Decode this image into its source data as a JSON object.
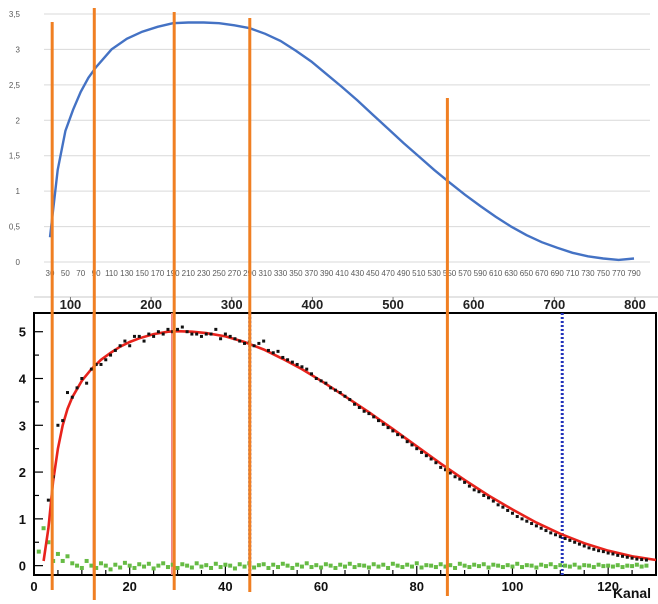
{
  "colors": {
    "top_curve": "#4472c4",
    "fit_curve": "#e8231c",
    "data_points": "#111111",
    "background_points": "#66bb44",
    "marker_orange": "#f07f22",
    "marker_pink": "#f08080",
    "marker_blue": "#2233bb",
    "grid": "#d9d9d9",
    "axis": "#000000"
  },
  "chart_data": [
    {
      "type": "line",
      "title": "",
      "xlabel": "",
      "ylabel": "",
      "xlim": [
        30,
        790
      ],
      "ylim": [
        0,
        3.5
      ],
      "grid": "horizontal",
      "y_ticks": [
        "0",
        "0,5",
        "1",
        "1,5",
        "2",
        "2,5",
        "3",
        "3,5"
      ],
      "y_tick_values": [
        0,
        0.5,
        1,
        1.5,
        2,
        2.5,
        3,
        3.5
      ],
      "x_ticks": [
        30,
        50,
        70,
        90,
        110,
        130,
        150,
        170,
        190,
        210,
        230,
        250,
        270,
        290,
        310,
        330,
        350,
        370,
        390,
        410,
        430,
        450,
        470,
        490,
        510,
        530,
        550,
        570,
        590,
        610,
        630,
        650,
        670,
        690,
        710,
        730,
        750,
        770,
        790
      ],
      "series": [
        {
          "x": [
            30,
            40,
            50,
            60,
            70,
            80,
            90,
            110,
            130,
            150,
            170,
            190,
            210,
            230,
            250,
            270,
            290,
            310,
            330,
            350,
            370,
            390,
            410,
            430,
            450,
            470,
            490,
            510,
            530,
            550,
            570,
            590,
            610,
            630,
            650,
            670,
            690,
            710,
            730,
            750,
            770,
            790
          ],
          "y": [
            0.35,
            1.3,
            1.85,
            2.15,
            2.4,
            2.6,
            2.75,
            3.0,
            3.15,
            3.25,
            3.32,
            3.37,
            3.38,
            3.38,
            3.37,
            3.34,
            3.3,
            3.22,
            3.12,
            2.98,
            2.83,
            2.65,
            2.47,
            2.28,
            2.08,
            1.88,
            1.68,
            1.49,
            1.3,
            1.12,
            0.95,
            0.79,
            0.64,
            0.5,
            0.38,
            0.28,
            0.2,
            0.13,
            0.08,
            0.05,
            0.03,
            0.05
          ]
        }
      ]
    },
    {
      "type": "axis",
      "ticks": [
        "100",
        "200",
        "300",
        "400",
        "500",
        "600",
        "700",
        "800"
      ],
      "tick_values": [
        100,
        200,
        300,
        400,
        500,
        600,
        700,
        800
      ],
      "range": [
        30,
        800
      ]
    },
    {
      "type": "scatter",
      "title": "",
      "xlabel": "Kanal",
      "ylabel": "",
      "xlim": [
        0,
        130
      ],
      "ylim": [
        -0.2,
        5.4
      ],
      "x_ticks": [
        "0",
        "20",
        "40",
        "60",
        "80",
        "100",
        "120"
      ],
      "x_tick_values": [
        0,
        20,
        40,
        60,
        80,
        100,
        120
      ],
      "y_ticks": [
        "0",
        "1",
        "2",
        "3",
        "4",
        "5"
      ],
      "y_tick_values": [
        0,
        1,
        2,
        3,
        4,
        5
      ],
      "series": [
        {
          "role": "fit",
          "x": [
            2,
            3,
            4,
            5,
            6,
            7,
            8,
            10,
            12,
            14,
            16,
            18,
            20,
            22,
            25,
            28,
            30,
            33,
            36,
            40,
            44,
            48,
            52,
            56,
            60,
            65,
            70,
            75,
            80,
            85,
            90,
            95,
            100,
            105,
            110,
            115,
            120,
            125,
            130
          ],
          "y": [
            0.1,
            0.8,
            1.8,
            2.5,
            3.0,
            3.35,
            3.6,
            3.95,
            4.2,
            4.4,
            4.55,
            4.68,
            4.78,
            4.86,
            4.95,
            5.0,
            5.01,
            5.0,
            4.97,
            4.9,
            4.78,
            4.62,
            4.42,
            4.2,
            3.95,
            3.62,
            3.28,
            2.92,
            2.55,
            2.18,
            1.83,
            1.5,
            1.2,
            0.92,
            0.68,
            0.48,
            0.32,
            0.2,
            0.12
          ]
        },
        {
          "role": "data",
          "x": [
            3,
            4,
            5,
            6,
            7,
            8,
            9,
            10,
            11,
            12,
            13,
            14,
            15,
            16,
            17,
            18,
            19,
            20,
            21,
            22,
            23,
            24,
            25,
            26,
            27,
            28,
            29,
            30,
            31,
            32,
            33,
            34,
            35,
            36,
            37,
            38,
            39,
            40,
            41,
            42,
            43,
            44,
            45,
            46,
            47,
            48,
            49,
            50,
            51,
            52,
            53,
            54,
            55,
            56,
            57,
            58,
            59,
            60,
            61,
            62,
            63,
            64,
            65,
            66,
            67,
            68,
            69,
            70,
            71,
            72,
            73,
            74,
            75,
            76,
            77,
            78,
            79,
            80,
            81,
            82,
            83,
            84,
            85,
            86,
            87,
            88,
            89,
            90,
            91,
            92,
            93,
            94,
            95,
            96,
            97,
            98,
            99,
            100,
            101,
            102,
            103,
            104,
            105,
            106,
            107,
            108,
            109,
            110,
            111,
            112,
            113,
            114,
            115,
            116,
            117,
            118,
            119,
            120,
            121,
            122,
            123,
            124,
            125,
            126,
            127,
            128
          ],
          "y": [
            1.4,
            1.9,
            3.0,
            3.1,
            3.7,
            3.6,
            3.8,
            4.0,
            3.9,
            4.2,
            4.3,
            4.3,
            4.4,
            4.5,
            4.6,
            4.7,
            4.8,
            4.7,
            4.9,
            4.9,
            4.8,
            4.95,
            4.9,
            5.0,
            4.95,
            5.05,
            5.0,
            5.05,
            5.1,
            5.0,
            4.95,
            4.95,
            4.9,
            4.95,
            4.95,
            5.05,
            4.85,
            4.95,
            4.9,
            4.85,
            4.8,
            4.75,
            4.78,
            4.7,
            4.75,
            4.8,
            4.6,
            4.55,
            4.58,
            4.45,
            4.4,
            4.35,
            4.3,
            4.25,
            4.2,
            4.1,
            4.0,
            3.95,
            3.9,
            3.8,
            3.75,
            3.7,
            3.62,
            3.55,
            3.45,
            3.38,
            3.3,
            3.25,
            3.18,
            3.1,
            3.02,
            2.95,
            2.88,
            2.8,
            2.75,
            2.65,
            2.58,
            2.5,
            2.42,
            2.35,
            2.28,
            2.2,
            2.1,
            2.05,
            1.98,
            1.9,
            1.85,
            1.78,
            1.7,
            1.62,
            1.58,
            1.5,
            1.45,
            1.38,
            1.3,
            1.25,
            1.18,
            1.12,
            1.05,
            1.0,
            0.95,
            0.9,
            0.85,
            0.8,
            0.75,
            0.7,
            0.66,
            0.62,
            0.58,
            0.54,
            0.5,
            0.46,
            0.42,
            0.38,
            0.35,
            0.32,
            0.3,
            0.27,
            0.25,
            0.22,
            0.2,
            0.18,
            0.16,
            0.14,
            0.13,
            0.12
          ]
        },
        {
          "role": "background",
          "x": [
            1,
            2,
            3,
            4,
            5,
            6,
            7,
            8,
            9,
            10,
            11,
            12,
            13,
            14,
            15,
            16,
            17,
            18,
            19,
            20,
            21,
            22,
            23,
            24,
            25,
            26,
            27,
            28,
            29,
            30,
            31,
            32,
            33,
            34,
            35,
            36,
            37,
            38,
            39,
            40,
            41,
            42,
            43,
            44,
            45,
            46,
            47,
            48,
            49,
            50,
            51,
            52,
            53,
            54,
            55,
            56,
            57,
            58,
            59,
            60,
            61,
            62,
            63,
            64,
            65,
            66,
            67,
            68,
            69,
            70,
            71,
            72,
            73,
            74,
            75,
            76,
            77,
            78,
            79,
            80,
            81,
            82,
            83,
            84,
            85,
            86,
            87,
            88,
            89,
            90,
            91,
            92,
            93,
            94,
            95,
            96,
            97,
            98,
            99,
            100,
            101,
            102,
            103,
            104,
            105,
            106,
            107,
            108,
            109,
            110,
            111,
            112,
            113,
            114,
            115,
            116,
            117,
            118,
            119,
            120,
            121,
            122,
            123,
            124,
            125,
            126,
            127,
            128
          ],
          "y": [
            0.3,
            0.8,
            0.5,
            0.1,
            0.25,
            0.1,
            0.2,
            0.05,
            0.0,
            -0.05,
            0.1,
            0.0,
            -0.05,
            0.05,
            0.0,
            -0.08,
            0.02,
            -0.04,
            0.06,
            0.0,
            -0.05,
            0.03,
            -0.02,
            0.04,
            -0.06,
            0.0,
            0.05,
            -0.03,
            0.02,
            -0.05,
            0.03,
            0.0,
            -0.04,
            0.05,
            -0.02,
            0.01,
            -0.05,
            0.04,
            -0.03,
            0.02,
            0.0,
            -0.06,
            0.03,
            -0.02,
            0.05,
            -0.04,
            0.01,
            0.03,
            -0.05,
            0.02,
            -0.03,
            0.04,
            0.0,
            -0.05,
            0.02,
            -0.02,
            0.05,
            -0.03,
            0.01,
            -0.04,
            0.03,
            0.0,
            -0.05,
            0.02,
            -0.02,
            0.04,
            -0.03,
            0.01,
            0.0,
            -0.04,
            0.03,
            -0.02,
            0.02,
            -0.05,
            0.04,
            0.0,
            -0.03,
            0.02,
            -0.02,
            0.05,
            -0.04,
            0.01,
            0.0,
            -0.03,
            0.03,
            -0.02,
            0.01,
            -0.05,
            0.04,
            0.0,
            -0.03,
            0.02,
            -0.01,
            0.03,
            -0.04,
            0.02,
            0.0,
            -0.03,
            0.01,
            -0.02,
            0.04,
            -0.03,
            0.01,
            0.0,
            -0.04,
            0.02,
            -0.01,
            0.03,
            -0.03,
            0.01,
            0.0,
            -0.02,
            0.02,
            -0.04,
            0.01,
            0.0,
            -0.03,
            0.02,
            -0.01,
            0.0,
            -0.02,
            0.01,
            -0.03,
            0.0,
            -0.01,
            0.02,
            -0.02,
            0.0
          ]
        }
      ],
      "vertical_lines": [
        {
          "role": "orange",
          "x": 3.8
        },
        {
          "role": "orange",
          "x": 12.6
        },
        {
          "role": "orange",
          "x": 29.3
        },
        {
          "role": "orange",
          "x": 45.1
        },
        {
          "role": "orange",
          "x": 86.4
        },
        {
          "role": "pink",
          "x": 12.4
        },
        {
          "role": "pink",
          "x": 28.8
        },
        {
          "role": "blue",
          "x": 45.1
        },
        {
          "role": "blue",
          "x": 110.4
        }
      ]
    }
  ]
}
